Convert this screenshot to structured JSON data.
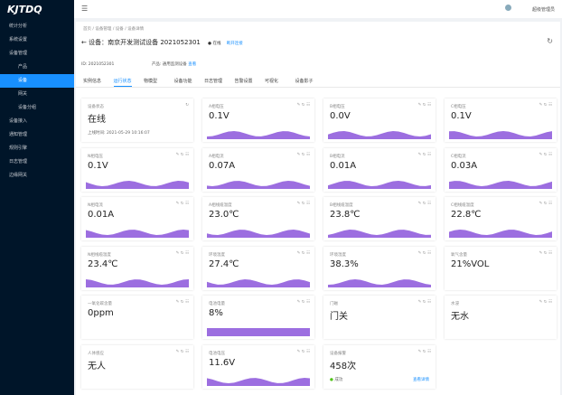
{
  "sidebar": {
    "logo": "KJTDQ",
    "menu": [
      {
        "label": "统计分析"
      },
      {
        "label": "系统设置"
      },
      {
        "label": "设备管理",
        "children": [
          "产品",
          "设备",
          "网关",
          "设备分组"
        ],
        "active_child": 1
      },
      {
        "label": "设备接入"
      },
      {
        "label": "通知管理"
      },
      {
        "label": "规则引擎"
      },
      {
        "label": "日志管理"
      },
      {
        "label": "边缘网关"
      }
    ]
  },
  "header": {
    "user": "超级管理员",
    "breadcrumb": [
      "首页",
      "设备管理",
      "设备",
      "设备详情"
    ]
  },
  "device": {
    "title": "设备：南京开发测试设备 2021052301",
    "status": "在线",
    "action": "断开连接",
    "id_label": "ID:",
    "id": "2021052301",
    "product_label": "产品:",
    "product": "通用监测设备",
    "product_link": "查看"
  },
  "tabs": {
    "items": [
      "实例信息",
      "运行状态",
      "物模型",
      "设备功能",
      "日志管理",
      "告警设置",
      "可视化",
      "设备影子"
    ],
    "active": 1
  },
  "cards": [
    {
      "label": "设备状态",
      "value": "在线",
      "extra": "上线时间: 2021-05-29 10:16:07"
    },
    {
      "label": "A相电压",
      "value": "0.1V",
      "sparkline": "area"
    },
    {
      "label": "B相电压",
      "value": "0.0V",
      "sparkline": "area"
    },
    {
      "label": "C相电压",
      "value": "0.1V",
      "sparkline": "area"
    },
    {
      "label": "N相电压",
      "value": "0.1V",
      "sparkline": "area"
    },
    {
      "label": "A相电流",
      "value": "0.07A",
      "sparkline": "area"
    },
    {
      "label": "B相电流",
      "value": "0.01A",
      "sparkline": "area"
    },
    {
      "label": "C相电流",
      "value": "0.03A",
      "sparkline": "area"
    },
    {
      "label": "N相电流",
      "value": "0.01A",
      "sparkline": "area"
    },
    {
      "label": "A相线缆温度",
      "value": "23.0℃",
      "sparkline": "area"
    },
    {
      "label": "B相线缆温度",
      "value": "23.8℃",
      "sparkline": "area"
    },
    {
      "label": "C相线缆温度",
      "value": "22.8℃",
      "sparkline": "area"
    },
    {
      "label": "N相线缆温度",
      "value": "23.4℃",
      "sparkline": "area"
    },
    {
      "label": "环境温度",
      "value": "27.4℃",
      "sparkline": "area"
    },
    {
      "label": "环境湿度",
      "value": "38.3%",
      "sparkline": "area"
    },
    {
      "label": "氧气含量",
      "value": "21%VOL"
    },
    {
      "label": "一氧化碳含量",
      "value": "0ppm"
    },
    {
      "label": "电池电量",
      "value": "8%",
      "sparkline": "bar"
    },
    {
      "label": "门磁",
      "value": "门关"
    },
    {
      "label": "水浸",
      "value": "无水"
    },
    {
      "label": "人体感应",
      "value": "无人"
    },
    {
      "label": "电池电压",
      "value": "11.6V",
      "sparkline": "area"
    },
    {
      "label": "设备报警",
      "value": "458次",
      "extra": "成功",
      "link": "查看详情"
    }
  ]
}
